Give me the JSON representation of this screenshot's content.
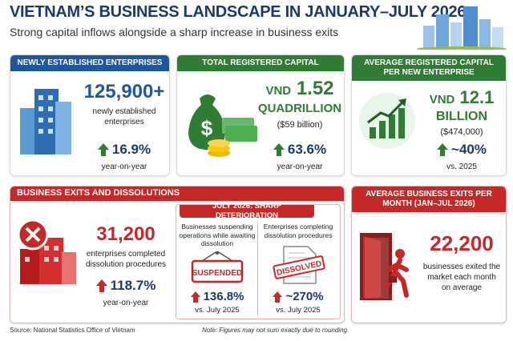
{
  "header": {
    "title": "VIETNAM’S BUSINESS LANDSCAPE IN JANUARY–JULY 2026",
    "subtitle": "Strong capital inflows alongside a sharp increase in business exits"
  },
  "cards": [
    {
      "title": "NEWLY ESTABLISHED ENTERPRISES",
      "value": "125,900+",
      "description": "newly established enterprises",
      "change": "16.9%",
      "change_note": "year-on-year"
    },
    {
      "title": "TOTAL REGISTERED CAPITAL",
      "currency": "VND",
      "value": "1.52",
      "unit": "QUADRILLION",
      "sub_value": "($59 billion)",
      "change": "63.6%",
      "change_note": "year-on-year"
    },
    {
      "title": "AVERAGE REGISTERED CAPITAL PER NEW ENTERPRISE",
      "currency": "VND",
      "value": "12.1",
      "unit": "BILLION",
      "sub_value": "($474,000)",
      "change": "~40%",
      "change_note": "vs. 2025"
    }
  ],
  "exits": {
    "title": "BUSINESS EXITS AND DISSOLUTIONS",
    "value": "31,200",
    "description": "enterprises completed dissolution procedures",
    "change": "118.7%",
    "change_note": "year-on-year",
    "july": {
      "title": "JULY 2026: SHARP DETERIORATION",
      "items": [
        {
          "label": "Businesses suspending operations while awaiting dissolution",
          "badge": "SUSPENDED",
          "change": "136.8%",
          "change_note": "vs. July 2025"
        },
        {
          "label": "Enterprises completing dissolution procedures",
          "badge": "DISSOLVED",
          "change": "~270%",
          "change_note": "vs. July 2025"
        }
      ]
    }
  },
  "monthly": {
    "title": "AVERAGE BUSINESS EXITS PER MONTH (JAN–JUL 2026)",
    "value": "22,200",
    "description": "businesses exited the market each month on average"
  },
  "footer": {
    "source": "Source: National Statistics Office of Vietnam",
    "note": "Note: Figures may not sum exactly due to rounding."
  }
}
